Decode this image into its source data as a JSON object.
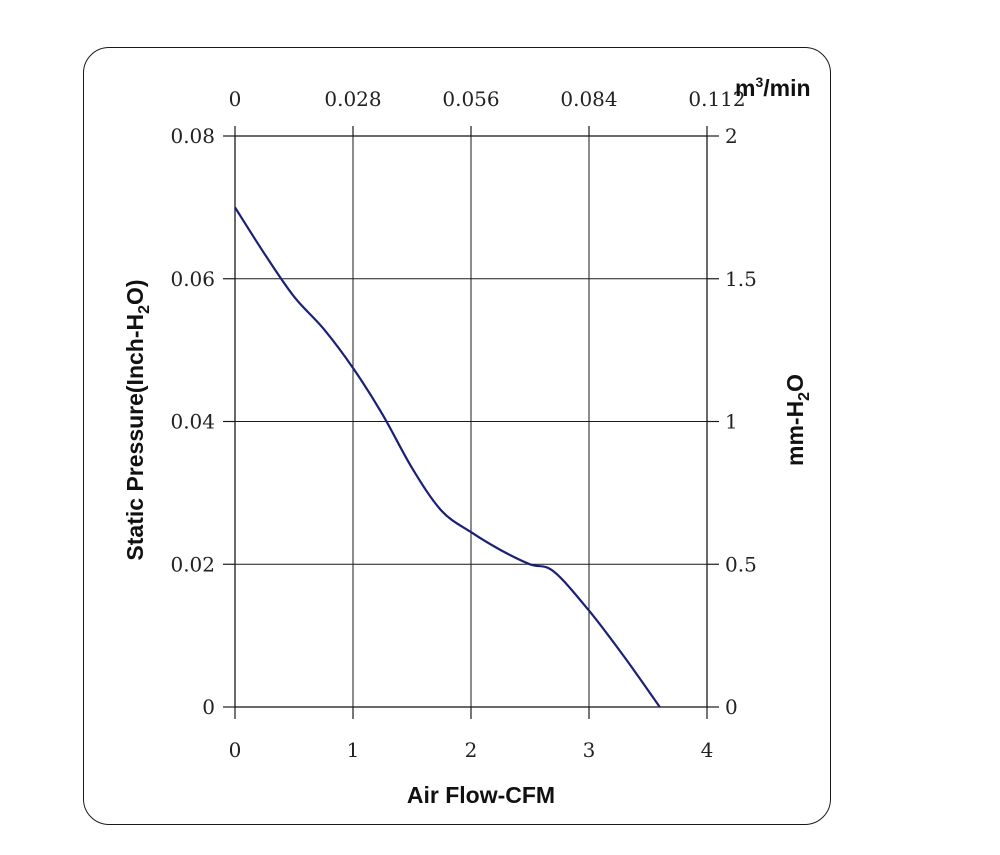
{
  "chart_data": {
    "type": "line",
    "xlabel": "Air Flow-CFM",
    "ylabel": "Static Pressure(Inch-H2O)",
    "ylabel_right": "mm-H2O",
    "xlabel_top": "m3/min",
    "xlim": [
      0,
      4
    ],
    "ylim": [
      0,
      0.08
    ],
    "xlim_top": [
      0,
      0.112
    ],
    "ylim_right": [
      0,
      2
    ],
    "x_ticks": [
      "0",
      "1",
      "2",
      "3",
      "4"
    ],
    "y_ticks": [
      "0",
      "0.02",
      "0.04",
      "0.06",
      "0.08"
    ],
    "x_ticks_top": [
      "0",
      "0.028",
      "0.056",
      "0.084",
      "0.112"
    ],
    "y_ticks_right": [
      "0",
      "0.5",
      "1",
      "1.5",
      "2"
    ],
    "grid": true,
    "line_color": "#1b1f7a",
    "series": [
      {
        "x": [
          0,
          0.25,
          0.5,
          0.75,
          1.0,
          1.25,
          1.5,
          1.75,
          2.0,
          2.25,
          2.5,
          2.7,
          3.0,
          3.3,
          3.6
        ],
        "y": [
          0.07,
          0.0635,
          0.0575,
          0.053,
          0.0475,
          0.041,
          0.0335,
          0.0275,
          0.0245,
          0.022,
          0.02,
          0.019,
          0.0135,
          0.007,
          0.0
        ]
      }
    ]
  }
}
